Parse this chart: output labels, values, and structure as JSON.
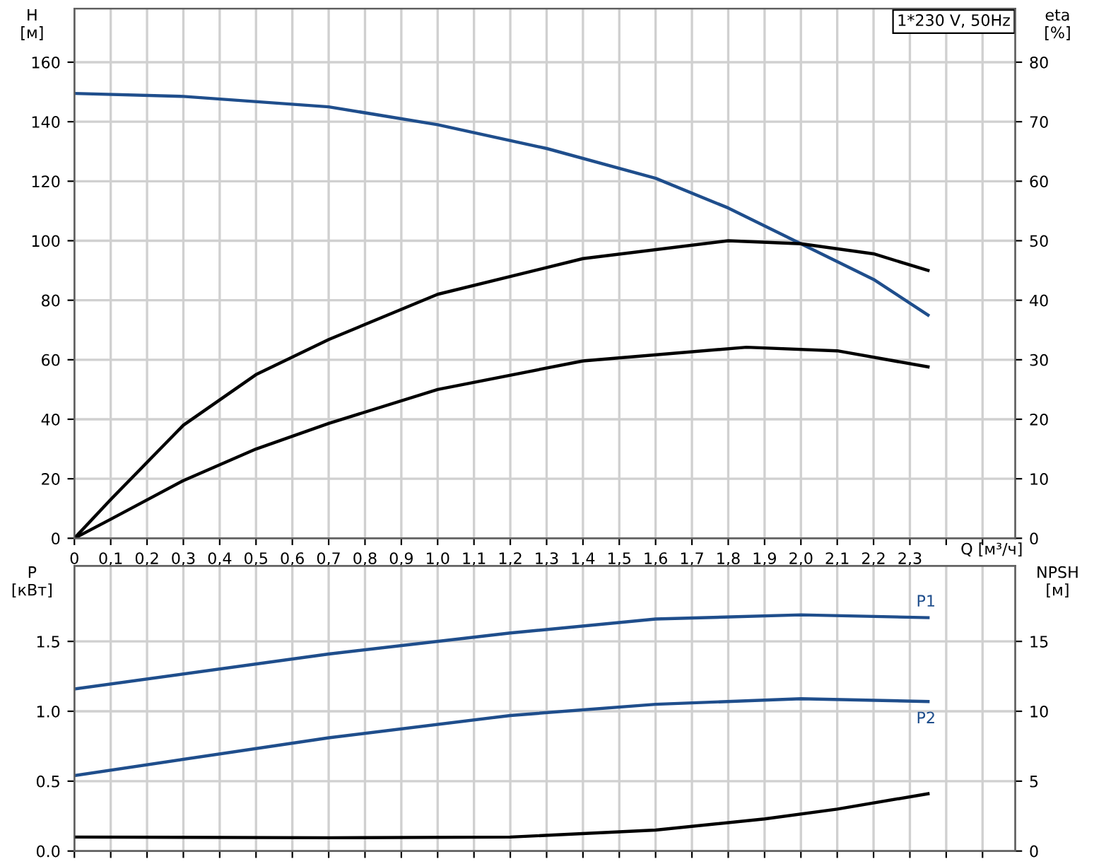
{
  "chart_data": [
    {
      "type": "line",
      "xlabel": "Q [м³/ч]",
      "ylabel": "H\n[м]",
      "y2label": "eta\n[%]",
      "annotations": [
        "1*230 V, 50Hz"
      ],
      "xlim": [
        0,
        2.59
      ],
      "xticks": [
        0,
        {
          "value": 0.1,
          "label": "0,1"
        },
        {
          "value": 0.2,
          "label": "0,2"
        },
        {
          "value": 0.3,
          "label": "0,3"
        },
        {
          "value": 0.4,
          "label": "0,4"
        },
        {
          "value": 0.5,
          "label": "0,5"
        },
        {
          "value": 0.6,
          "label": "0,6"
        },
        {
          "value": 0.7,
          "label": "0,7"
        },
        {
          "value": 0.8,
          "label": "0,8"
        },
        {
          "value": 0.9,
          "label": "0,9"
        },
        {
          "value": 1.0,
          "label": "1,0"
        },
        {
          "value": 1.1,
          "label": "1,1"
        },
        {
          "value": 1.2,
          "label": "1,2"
        },
        {
          "value": 1.3,
          "label": "1,3"
        },
        {
          "value": 1.4,
          "label": "1,4"
        },
        {
          "value": 1.5,
          "label": "1,5"
        },
        {
          "value": 1.6,
          "label": "1,6"
        },
        {
          "value": 1.7,
          "label": "1,7"
        },
        {
          "value": 1.8,
          "label": "1,8"
        },
        {
          "value": 1.9,
          "label": "1,9"
        },
        {
          "value": 2.0,
          "label": "2,0"
        },
        {
          "value": 2.1,
          "label": "2,1"
        },
        {
          "value": 2.2,
          "label": "2,2"
        },
        {
          "value": 2.3,
          "label": "2,3"
        },
        {
          "value": 2.4,
          "label": null
        },
        {
          "value": 2.5,
          "label": null
        }
      ],
      "ylim": [
        0,
        178
      ],
      "yticks": [
        0,
        20,
        40,
        60,
        80,
        100,
        120,
        140,
        160
      ],
      "y2lim": [
        0,
        89
      ],
      "y2ticks": [
        0,
        10,
        20,
        30,
        40,
        50,
        60,
        70,
        80
      ],
      "grid": true,
      "marker": "none",
      "line_style": "solid",
      "series": [
        {
          "color": "#1f4e8c",
          "x": [
            0,
            0.3,
            0.7,
            1.0,
            1.3,
            1.6,
            1.8,
            2.0,
            2.2,
            2.35
          ],
          "values": [
            149.5,
            148.5,
            145,
            139,
            131,
            121,
            111,
            99,
            87,
            75
          ]
        },
        {
          "color": "#000000",
          "axis": "y2",
          "x": [
            0,
            0.1,
            0.3,
            0.5,
            0.7,
            1.0,
            1.4,
            1.8,
            2.0,
            2.2,
            2.35
          ],
          "values": [
            0,
            6.5,
            19,
            27.5,
            33.4,
            41,
            47,
            50,
            49.5,
            47.8,
            45
          ]
        },
        {
          "color": "#000000",
          "axis": "y2",
          "x": [
            0,
            0.1,
            0.3,
            0.5,
            0.7,
            1.0,
            1.4,
            1.85,
            2.1,
            2.35
          ],
          "values": [
            0,
            3.2,
            9.7,
            15,
            19.3,
            25,
            29.8,
            32.1,
            31.5,
            28.8
          ]
        }
      ]
    },
    {
      "type": "line",
      "ylabel": "P\n[кВт]",
      "y2label": "NPSH\n[м]",
      "tick_labels": "y",
      "xlim": [
        0,
        2.59
      ],
      "xticks": [
        0,
        0.1,
        0.2,
        0.3,
        0.4,
        0.5,
        0.6,
        0.7,
        0.8,
        0.9,
        1.0,
        1.1,
        1.2,
        1.3,
        1.4,
        1.5,
        1.6,
        1.7,
        1.8,
        1.9,
        2.0,
        2.1,
        2.2,
        2.3,
        2.4,
        2.5
      ],
      "ylim": [
        0,
        2.04
      ],
      "yticks": [
        {
          "value": 0,
          "label": "0.0"
        },
        0.5,
        {
          "value": 1,
          "label": "1.0"
        },
        1.5
      ],
      "y2lim": [
        0,
        20.4
      ],
      "y2ticks": [
        0,
        5,
        10,
        15
      ],
      "grid": true,
      "marker": "none",
      "line_style": "solid",
      "series": [
        {
          "name": "P1",
          "color": "#1f4e8c",
          "x": [
            0,
            0.7,
            1.2,
            1.6,
            2.0,
            2.35
          ],
          "values": [
            1.16,
            1.41,
            1.56,
            1.66,
            1.69,
            1.67
          ]
        },
        {
          "name": "P2",
          "color": "#1f4e8c",
          "x": [
            0,
            0.7,
            1.2,
            1.6,
            2.0,
            2.35
          ],
          "values": [
            0.54,
            0.81,
            0.97,
            1.05,
            1.09,
            1.07
          ]
        },
        {
          "color": "#000000",
          "axis": "y2",
          "x": [
            0,
            0.7,
            1.2,
            1.6,
            1.9,
            2.1,
            2.35
          ],
          "values": [
            1.0,
            0.95,
            1.0,
            1.5,
            2.3,
            3.0,
            4.1
          ]
        }
      ]
    }
  ]
}
